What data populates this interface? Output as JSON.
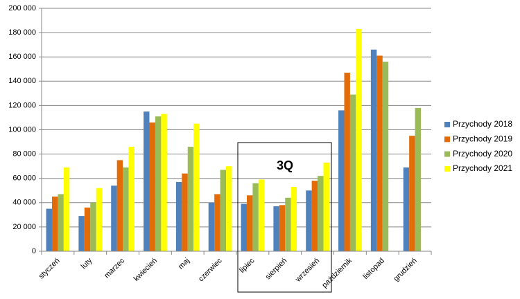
{
  "chart_data": {
    "type": "bar",
    "categories": [
      "styczeń",
      "luty",
      "marzec",
      "kwiecień",
      "maj",
      "czerwiec",
      "lipiec",
      "sierpień",
      "wrzesień",
      "październik",
      "listopad",
      "grudzień"
    ],
    "series": [
      {
        "name": "Przychody 2018",
        "color": "#4f81bd",
        "values": [
          35000,
          29000,
          54000,
          115000,
          57000,
          40000,
          39000,
          37000,
          50000,
          116000,
          166000,
          69000
        ]
      },
      {
        "name": "Przychody 2019",
        "color": "#e36c09",
        "values": [
          45000,
          36000,
          75000,
          106000,
          64000,
          47000,
          46000,
          38000,
          58000,
          147000,
          161000,
          95000
        ]
      },
      {
        "name": "Przychody 2020",
        "color": "#9bbb59",
        "values": [
          47000,
          40000,
          69000,
          111000,
          86000,
          67000,
          56000,
          44000,
          62000,
          129000,
          156000,
          118000
        ]
      },
      {
        "name": "Przychody 2021",
        "color": "#ffff00",
        "values": [
          69000,
          52000,
          86000,
          113000,
          105000,
          70000,
          59000,
          53000,
          73000,
          183000,
          null,
          null
        ]
      }
    ],
    "ylim": [
      0,
      200000
    ],
    "yticks": [
      0,
      {
        "value": 20000,
        "label": "20 000"
      },
      {
        "value": 40000,
        "label": "40 000"
      },
      {
        "value": 60000,
        "label": "60 000"
      },
      {
        "value": 80000,
        "label": "80 000"
      },
      {
        "value": 100000,
        "label": "100 000"
      },
      {
        "value": 120000,
        "label": "120 000"
      },
      {
        "value": 140000,
        "label": "140 000"
      },
      {
        "value": 160000,
        "label": "160 000"
      },
      {
        "value": 180000,
        "label": "180 000"
      },
      {
        "value": 200000,
        "label": "200 000"
      }
    ],
    "grid": true,
    "legend": "right",
    "annotation": "3Q"
  }
}
